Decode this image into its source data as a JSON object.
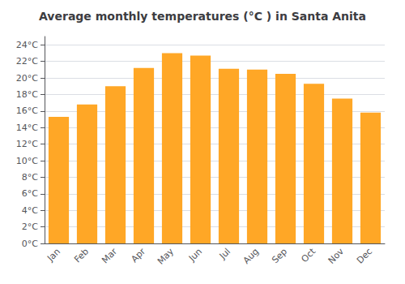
{
  "chart_data": {
    "type": "bar",
    "title": "Average monthly temperatures (°C ) in Santa Anita",
    "categories": [
      "Jan",
      "Feb",
      "Mar",
      "Apr",
      "May",
      "Jun",
      "Jul",
      "Aug",
      "Sep",
      "Oct",
      "Nov",
      "Dec"
    ],
    "values": [
      15.3,
      16.8,
      19.0,
      21.2,
      23.0,
      22.7,
      21.1,
      21.0,
      20.5,
      19.3,
      17.5,
      15.8
    ],
    "color": "#FFA726",
    "ylim": [
      0,
      25
    ],
    "yticks": [
      {
        "value": 0,
        "label": "0°C"
      },
      {
        "value": 2,
        "label": "2°C"
      },
      {
        "value": 4,
        "label": "4°C"
      },
      {
        "value": 6,
        "label": "6°C"
      },
      {
        "value": 8,
        "label": "8°C"
      },
      {
        "value": 10,
        "label": "10°C"
      },
      {
        "value": 12,
        "label": "12°C"
      },
      {
        "value": 14,
        "label": "14°C"
      },
      {
        "value": 16,
        "label": "16°C"
      },
      {
        "value": 18,
        "label": "18°C"
      },
      {
        "value": 20,
        "label": "20°C"
      },
      {
        "value": 22,
        "label": "22°C"
      },
      {
        "value": 24,
        "label": "24°C"
      }
    ],
    "grid": true
  }
}
